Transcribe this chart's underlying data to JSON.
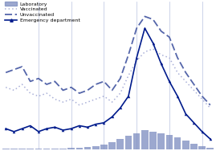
{
  "n_points": 26,
  "bar_values": [
    0.5,
    0.5,
    0.5,
    0.5,
    0.5,
    0.5,
    0.5,
    0.5,
    1,
    1,
    1.5,
    2,
    3,
    5,
    7,
    9,
    11,
    13,
    12,
    11,
    10,
    8,
    6,
    4,
    2,
    1
  ],
  "vaccinated": [
    42,
    40,
    44,
    38,
    36,
    38,
    34,
    32,
    34,
    30,
    32,
    34,
    36,
    32,
    38,
    50,
    60,
    66,
    68,
    64,
    62,
    52,
    46,
    40,
    34,
    28
  ],
  "unvaccinated": [
    52,
    54,
    56,
    46,
    48,
    44,
    46,
    40,
    42,
    38,
    40,
    44,
    46,
    40,
    48,
    64,
    82,
    90,
    88,
    80,
    76,
    62,
    52,
    44,
    36,
    30
  ],
  "emergency": [
    14,
    12,
    14,
    16,
    12,
    14,
    15,
    13,
    14,
    16,
    15,
    17,
    18,
    22,
    28,
    36,
    62,
    82,
    72,
    58,
    46,
    36,
    24,
    18,
    12,
    7
  ],
  "bar_color": "#7b8bbf",
  "vaccinated_color": "#aab0d8",
  "unvaccinated_color": "#5566aa",
  "emergency_color": "#001b8c",
  "background_color": "#ffffff",
  "ylim_bars": [
    0,
    100
  ],
  "ylim_lines": [
    0,
    100
  ],
  "legend_labels": [
    "Laboratory",
    "Vaccinated",
    "Unvaccinated",
    "Emergency department"
  ],
  "n_xticks": 7,
  "vertical_lines_at": [
    4,
    8,
    12,
    16,
    20,
    24
  ]
}
